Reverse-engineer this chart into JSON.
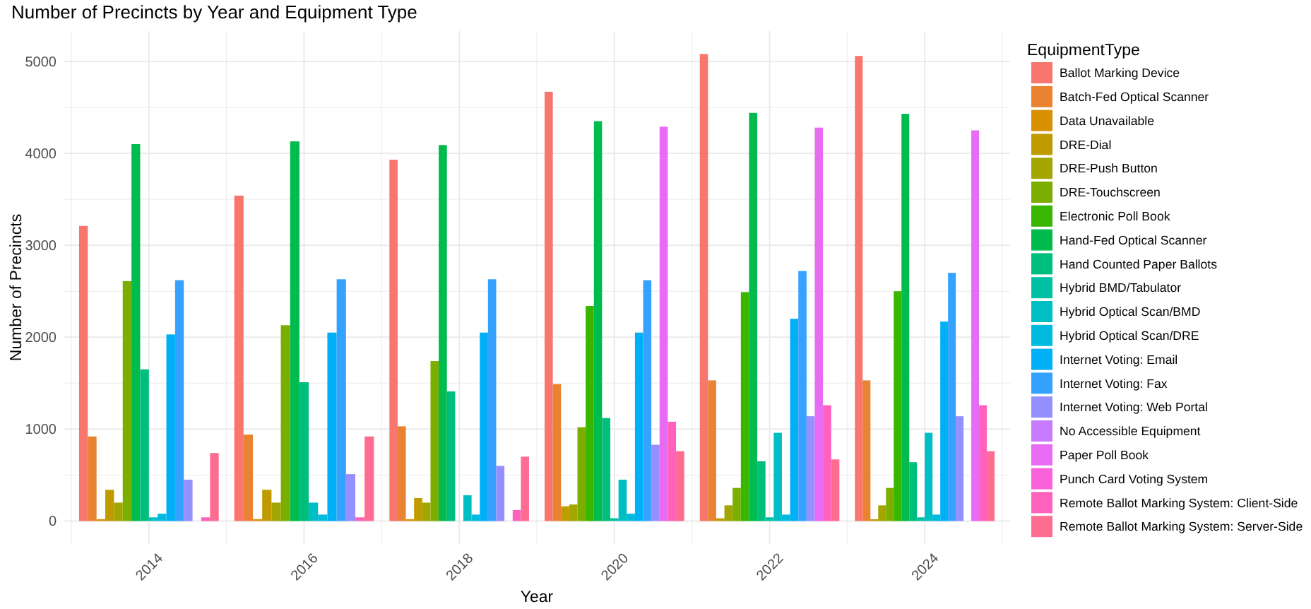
{
  "chart_data": {
    "type": "bar",
    "title": "Number of Precincts by Year and Equipment Type",
    "xlabel": "Year",
    "ylabel": "Number of Precincts",
    "legend_title": "EquipmentType",
    "x": [
      2014,
      2016,
      2018,
      2020,
      2022,
      2024
    ],
    "xlim": [
      2012.9,
      2025.1
    ],
    "xticks": [
      {
        "value": 2013,
        "label": null
      },
      2014,
      {
        "value": 2015,
        "label": null
      },
      2016,
      {
        "value": 2017,
        "label": null
      },
      2018,
      {
        "value": 2019,
        "label": null
      },
      2020,
      {
        "value": 2021,
        "label": null
      },
      2022,
      {
        "value": 2023,
        "label": null
      },
      2024,
      {
        "value": 2025,
        "label": null
      }
    ],
    "ylim": [
      -250,
      5330
    ],
    "yticks": [
      0,
      {
        "value": 500,
        "label": null
      },
      1000,
      {
        "value": 1500,
        "label": null
      },
      2000,
      {
        "value": 2500,
        "label": null
      },
      3000,
      {
        "value": 3500,
        "label": null
      },
      4000,
      {
        "value": 4500,
        "label": null
      },
      5000
    ],
    "grid": true,
    "legend": "right",
    "series": [
      {
        "name": "Ballot Marking Device",
        "color": "#F8766D",
        "values": [
          3210,
          3540,
          3930,
          4670,
          5080,
          5060
        ]
      },
      {
        "name": "Batch-Fed Optical Scanner",
        "color": "#EA8331",
        "values": [
          920,
          940,
          1030,
          1490,
          1530,
          1530
        ]
      },
      {
        "name": "Data Unavailable",
        "color": "#D89000",
        "values": [
          20,
          20,
          20,
          null,
          null,
          null
        ]
      },
      {
        "name": "DRE-Dial",
        "color": "#C09B00",
        "values": [
          340,
          340,
          250,
          160,
          30,
          20
        ]
      },
      {
        "name": "DRE-Push Button",
        "color": "#A3A500",
        "values": [
          200,
          200,
          200,
          180,
          170,
          170
        ]
      },
      {
        "name": "DRE-Touchscreen",
        "color": "#7CAE00",
        "values": [
          2610,
          2130,
          1740,
          1020,
          360,
          360
        ]
      },
      {
        "name": "Electronic Poll Book",
        "color": "#39B600",
        "values": [
          null,
          null,
          null,
          2340,
          2490,
          2500
        ]
      },
      {
        "name": "Hand-Fed Optical Scanner",
        "color": "#00BB4E",
        "values": [
          4100,
          4130,
          4090,
          4350,
          4440,
          4430
        ]
      },
      {
        "name": "Hand Counted Paper Ballots",
        "color": "#00BF7D",
        "values": [
          1650,
          1510,
          1410,
          1120,
          650,
          640
        ]
      },
      {
        "name": "Hybrid BMD/Tabulator",
        "color": "#00C1A3",
        "values": [
          null,
          null,
          0,
          30,
          40,
          40
        ]
      },
      {
        "name": "Hybrid Optical Scan/BMD",
        "color": "#00BFC4",
        "values": [
          40,
          200,
          280,
          450,
          960,
          960
        ]
      },
      {
        "name": "Hybrid Optical Scan/DRE",
        "color": "#00BAE0",
        "values": [
          80,
          70,
          70,
          80,
          70,
          70
        ]
      },
      {
        "name": "Internet Voting: Email",
        "color": "#00B0F6",
        "values": [
          2030,
          2050,
          2050,
          2050,
          2200,
          2170
        ]
      },
      {
        "name": "Internet Voting: Fax",
        "color": "#35A2FF",
        "values": [
          2620,
          2630,
          2630,
          2620,
          2720,
          2700
        ]
      },
      {
        "name": "Internet Voting: Web Portal",
        "color": "#9590FF",
        "values": [
          450,
          510,
          600,
          830,
          1140,
          1140
        ]
      },
      {
        "name": "No Accessible Equipment",
        "color": "#C77CFF",
        "values": [
          null,
          null,
          null,
          null,
          null,
          0
        ]
      },
      {
        "name": "Paper Poll Book",
        "color": "#E76BF3",
        "values": [
          null,
          null,
          null,
          4290,
          4280,
          4250
        ]
      },
      {
        "name": "Punch Card Voting System",
        "color": "#FA62DB",
        "values": [
          0,
          null,
          0,
          null,
          null,
          null
        ]
      },
      {
        "name": "Remote Ballot Marking System: Client-Side",
        "color": "#FF62BC",
        "values": [
          40,
          40,
          120,
          1080,
          1260,
          1260
        ]
      },
      {
        "name": "Remote Ballot Marking System: Server-Side",
        "color": "#FF6C91",
        "values": [
          740,
          920,
          700,
          760,
          670,
          760
        ]
      }
    ]
  }
}
